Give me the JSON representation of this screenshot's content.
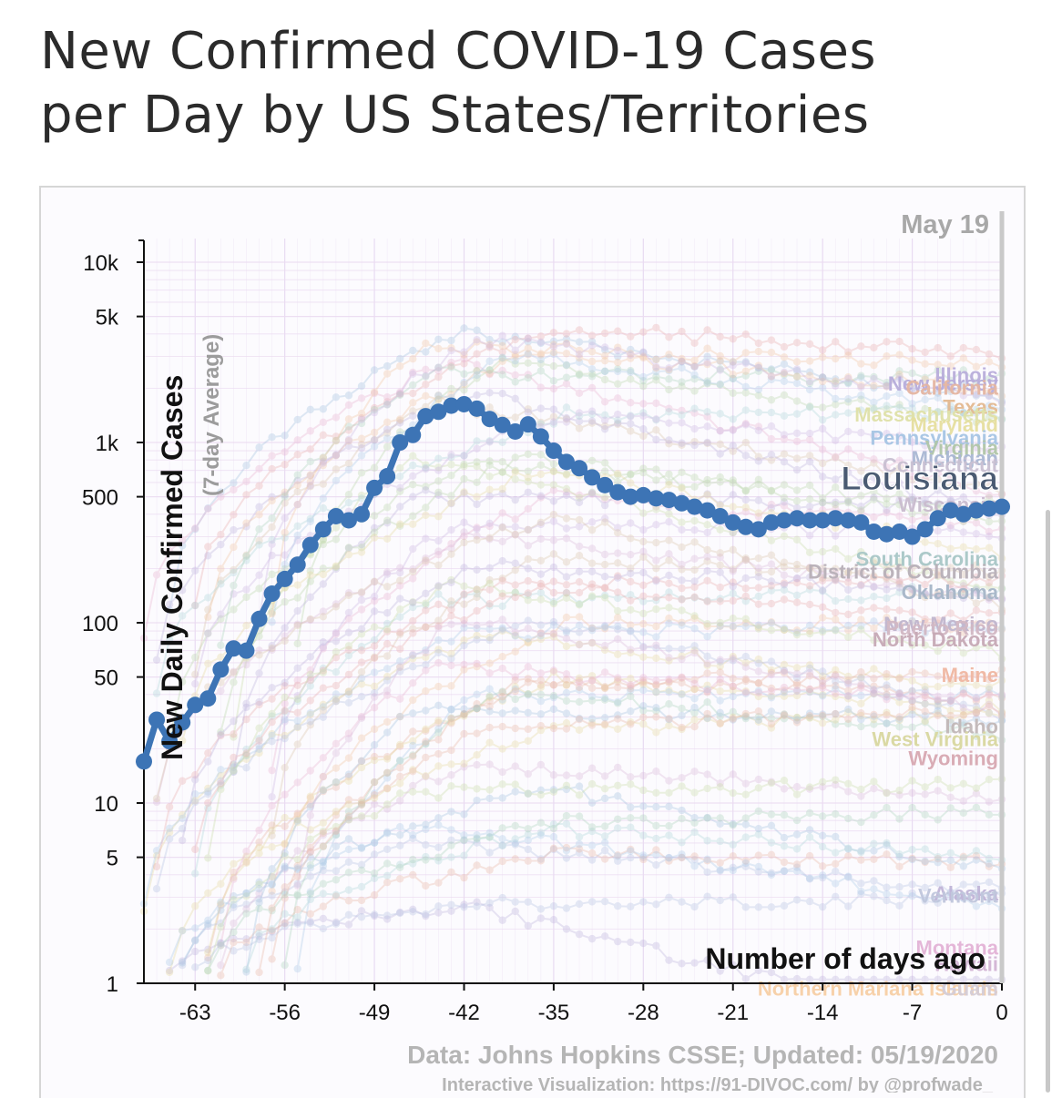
{
  "title": {
    "line1": "New Confirmed COVID-19 Cases",
    "line2": "per Day by US States/Territories"
  },
  "colors": {
    "highlight": "#3d74b5",
    "axis": "#111111",
    "grid_v": "#e6d8f0",
    "grid_h": "#ecdcf1",
    "footer": "#b5b5b5",
    "date_label": "#a8a8a8",
    "ylabel2": "#9c9c9c"
  },
  "chart_data": {
    "type": "line",
    "title": "New Confirmed COVID-19 Cases per Day by US States/Territories",
    "date_label": "May 19",
    "xlabel": "Number of days ago",
    "ylabel": "New Daily Confirmed Cases",
    "ylabel_sub": "(7-day Average)",
    "yscale": "log",
    "ylim": [
      1,
      12000
    ],
    "xlim": [
      -67,
      0
    ],
    "x_ticks": [
      -63,
      -56,
      -49,
      -42,
      -35,
      -28,
      -21,
      -14,
      -7,
      0
    ],
    "x_tick_labels": [
      "-63",
      "-56",
      "-49",
      "-42",
      "-35",
      "-28",
      "-21",
      "-14",
      "-7",
      "0"
    ],
    "y_ticks": [
      1,
      5,
      10,
      50,
      100,
      500,
      1000,
      5000,
      10000
    ],
    "y_tick_labels": [
      "1",
      "5",
      "10",
      "50",
      "100",
      "500",
      "1k",
      "5k",
      "10k"
    ],
    "footer": {
      "source": "Data: Johns Hopkins CSSE; Updated: 05/19/2020",
      "credit": "Interactive Visualization: https://91-DIVOC.com/ by @profwade_"
    },
    "highlight_series": {
      "name": "Louisiana",
      "x": [
        -67,
        -66,
        -65,
        -64,
        -63,
        -62,
        -61,
        -60,
        -59,
        -58,
        -57,
        -56,
        -55,
        -54,
        -53,
        -52,
        -51,
        -50,
        -49,
        -48,
        -47,
        -46,
        -45,
        -44,
        -43,
        -42,
        -41,
        -40,
        -39,
        -38,
        -37,
        -36,
        -35,
        -34,
        -33,
        -32,
        -31,
        -30,
        -29,
        -28,
        -27,
        -26,
        -25,
        -24,
        -23,
        -22,
        -21,
        -20,
        -19,
        -18,
        -17,
        -16,
        -15,
        -14,
        -13,
        -12,
        -11,
        -10,
        -9,
        -8,
        -7,
        -6,
        -5,
        -4,
        -3,
        -2,
        -1,
        0
      ],
      "values": [
        17,
        29,
        22,
        28,
        35,
        38,
        55,
        72,
        70,
        105,
        145,
        175,
        210,
        270,
        330,
        390,
        370,
        400,
        560,
        650,
        1000,
        1100,
        1400,
        1480,
        1600,
        1630,
        1540,
        1350,
        1250,
        1150,
        1260,
        1080,
        900,
        780,
        720,
        640,
        580,
        530,
        500,
        510,
        490,
        480,
        460,
        440,
        420,
        390,
        360,
        340,
        330,
        360,
        370,
        380,
        370,
        370,
        380,
        370,
        360,
        320,
        310,
        320,
        300,
        330,
        380,
        420,
        400,
        420,
        430,
        440
      ]
    },
    "state_labels": [
      {
        "name": "Illinois",
        "value": 2400,
        "color": "#b9aedb"
      },
      {
        "name": "New Jersey",
        "value": 2150,
        "color": "#b7addb"
      },
      {
        "name": "California",
        "value": 2050,
        "color": "#e5b6a2"
      },
      {
        "name": "Texas",
        "value": 1600,
        "color": "#e3b991"
      },
      {
        "name": "Massachusetts",
        "value": 1450,
        "color": "#dfe1a8"
      },
      {
        "name": "Maryland",
        "value": 1280,
        "color": "#e6df9f"
      },
      {
        "name": "Pennsylvania",
        "value": 1080,
        "color": "#a6c5e4"
      },
      {
        "name": "Virginia",
        "value": 950,
        "color": "#b1c6a8"
      },
      {
        "name": "Michigan",
        "value": 830,
        "color": "#a9b7d3"
      },
      {
        "name": "Connecticut",
        "value": 760,
        "color": "#c9c0d2"
      },
      {
        "name": "Wisconsin",
        "value": 460,
        "color": "#cabccf"
      },
      {
        "name": "South Carolina",
        "value": 230,
        "color": "#a8c7c7"
      },
      {
        "name": "District of Columbia",
        "value": 195,
        "color": "#b8b0b8"
      },
      {
        "name": "Oklahoma",
        "value": 150,
        "color": "#a6b6c8"
      },
      {
        "name": "New Mexico",
        "value": 100,
        "color": "#c0b6ce"
      },
      {
        "name": "Puerto Rico",
        "value": 95,
        "color": "#d2b8c4"
      },
      {
        "name": "North Dakota",
        "value": 82,
        "color": "#c7a9b6"
      },
      {
        "name": "Maine",
        "value": 52,
        "color": "#f0b7a2"
      },
      {
        "name": "Idaho",
        "value": 27,
        "color": "#c2b8b8"
      },
      {
        "name": "West Virginia",
        "value": 23,
        "color": "#d9d8a0"
      },
      {
        "name": "Wyoming",
        "value": 18,
        "color": "#d8a8b2"
      },
      {
        "name": "Alaska",
        "value": 3.2,
        "color": "#c0b5d8"
      },
      {
        "name": "Vermont",
        "value": 3.1,
        "color": "#c0c7dd"
      },
      {
        "name": "Montana",
        "value": 1.6,
        "color": "#e3b3d6"
      },
      {
        "name": "Hawaii",
        "value": 1.3,
        "color": "#d2b4d4"
      },
      {
        "name": "Northern Mariana Islands",
        "value": 0.95,
        "color": "#f7cfa6"
      },
      {
        "name": "Guam",
        "value": 0.95,
        "color": "#d5cdd8"
      }
    ]
  }
}
